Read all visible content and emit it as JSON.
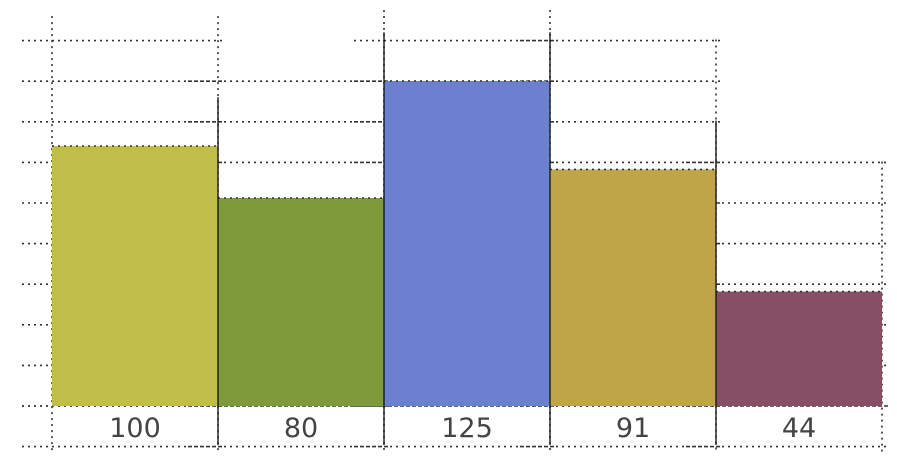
{
  "chart_data": {
    "type": "bar",
    "categories": [
      "100",
      "80",
      "125",
      "91",
      "44"
    ],
    "values": [
      100,
      80,
      125,
      91,
      44
    ],
    "series": [
      {
        "values": [
          100,
          80,
          125,
          91,
          44
        ]
      }
    ],
    "bar_colors": [
      "#c0bd48",
      "#7e9a3a",
      "#6b80cf",
      "#c0a448",
      "#874f66"
    ],
    "title": "",
    "xlabel": "",
    "ylabel": "",
    "grid": true,
    "legend": "none"
  }
}
